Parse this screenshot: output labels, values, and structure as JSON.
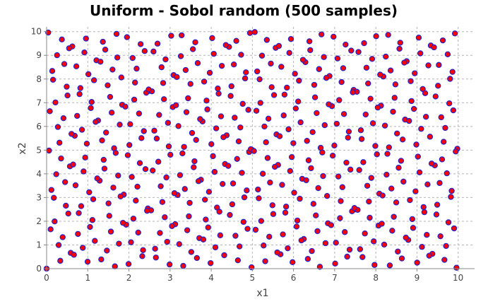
{
  "chart_data": {
    "type": "scatter",
    "title": "Uniform - Sobol random (500 samples)",
    "xlabel": "x1",
    "ylabel": "x2",
    "xlim": [
      0,
      10.4
    ],
    "ylim": [
      0,
      10.2
    ],
    "xticks": [
      "0",
      "1",
      "2",
      "3",
      "4",
      "5",
      "6",
      "7",
      "8",
      "9",
      "10"
    ],
    "yticks": [
      "0",
      "1",
      "2",
      "3",
      "4",
      "5",
      "6",
      "7",
      "8",
      "9",
      "10"
    ],
    "grid": true,
    "grid_style": "dashed",
    "legend": "none",
    "marker_fill": "#ff0000",
    "marker_edge": "#2222cc",
    "series": [
      {
        "points_count": 500,
        "sequence": "sobol-2d",
        "scale": [
          10,
          10
        ],
        "x": [],
        "y": []
      }
    ]
  }
}
